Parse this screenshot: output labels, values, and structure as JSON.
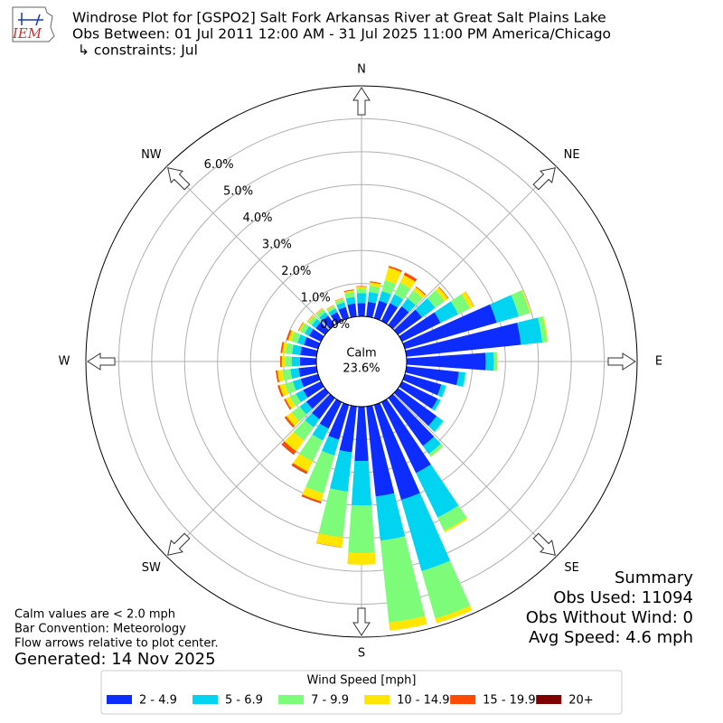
{
  "chart_data": {
    "type": "windrose",
    "logo": "IEM",
    "title": "Windrose Plot for [GSPO2] Salt Fork Arkansas River at Great Salt Plains Lake",
    "subtitle": [
      "Obs Between: 01 Jul 2011 12:00 AM - 31 Jul 2025 11:00 PM America/Chicago",
      "↳ constraints: Jul"
    ],
    "direction_labels": [
      "N",
      "NE",
      "E",
      "SE",
      "S",
      "SW",
      "W",
      "NW"
    ],
    "rlim": [
      0,
      7
    ],
    "rticks": [
      {
        "value": 0,
        "label": "0.0%"
      },
      {
        "value": 1,
        "label": "1.0%"
      },
      {
        "value": 2,
        "label": "2.0%"
      },
      {
        "value": 3,
        "label": "3.0%"
      },
      {
        "value": 4,
        "label": "4.0%"
      },
      {
        "value": 5,
        "label": "5.0%"
      },
      {
        "value": 6,
        "label": "6.0%"
      }
    ],
    "grid": true,
    "calm": {
      "label": "Calm",
      "value": 23.6,
      "value_label": "23.6%"
    },
    "legend_title": "Wind Speed [mph]",
    "series": [
      {
        "name": "2 - 4.9",
        "color": "#0d2cff",
        "values": [
          0.4,
          0.45,
          0.55,
          0.6,
          0.7,
          0.9,
          1.3,
          2.9,
          3.5,
          2.4,
          1.6,
          1.15,
          1.2,
          1.45,
          1.8,
          2.4,
          3.0,
          2.75,
          1.65,
          1.4,
          1.1,
          0.9,
          0.8,
          0.7,
          0.6,
          0.55,
          0.55,
          0.5,
          0.5,
          0.45,
          0.4,
          0.35,
          0.35,
          0.3,
          0.35,
          0.4
        ]
      },
      {
        "name": "5 - 6.9",
        "color": "#00d4f0",
        "values": [
          0.3,
          0.3,
          0.3,
          0.3,
          0.3,
          0.5,
          0.6,
          0.7,
          0.65,
          0.25,
          0.2,
          0.15,
          0.1,
          0.25,
          0.3,
          1.5,
          2.25,
          1.35,
          1.35,
          1.2,
          0.5,
          0.4,
          0.3,
          0.25,
          0.25,
          0.25,
          0.25,
          0.25,
          0.25,
          0.2,
          0.15,
          0.15,
          0.13,
          0.12,
          0.15,
          0.2
        ]
      },
      {
        "name": "7 - 9.9",
        "color": "#7dfc7a",
        "values": [
          0.15,
          0.2,
          0.35,
          0.4,
          0.3,
          0.35,
          0.4,
          0.35,
          0.15,
          0.1,
          0.03,
          0.02,
          0.02,
          0.03,
          0.1,
          0.45,
          1.5,
          2.5,
          1.45,
          1.4,
          1.2,
          0.7,
          0.5,
          0.3,
          0.2,
          0.25,
          0.25,
          0.2,
          0.2,
          0.2,
          0.15,
          0.12,
          0.12,
          0.08,
          0.1,
          0.15
        ]
      },
      {
        "name": "10 - 14.9",
        "color": "#ffe600",
        "values": [
          0.05,
          0.1,
          0.4,
          0.25,
          0.12,
          0.13,
          0.13,
          0.03,
          0.03,
          0.01,
          0,
          0,
          0,
          0,
          0.01,
          0.05,
          0.15,
          0.25,
          0.35,
          0.3,
          0.25,
          0.35,
          0.4,
          0.2,
          0.15,
          0.17,
          0.15,
          0.1,
          0.1,
          0.1,
          0.05,
          0.04,
          0.03,
          0.03,
          0.03,
          0.05
        ]
      },
      {
        "name": "15 - 19.9",
        "color": "#ff4a00",
        "values": [
          0.02,
          0.03,
          0.05,
          0.09,
          0.03,
          0.02,
          0.01,
          0,
          0,
          0,
          0,
          0,
          0,
          0,
          0,
          0,
          0,
          0,
          0,
          0.01,
          0.05,
          0.07,
          0.12,
          0.07,
          0.05,
          0.06,
          0.05,
          0.05,
          0.05,
          0.05,
          0.02,
          0.01,
          0.01,
          0.01,
          0.01,
          0.03
        ]
      },
      {
        "name": "20+",
        "color": "#7f0000",
        "values": [
          0,
          0,
          0,
          0,
          0,
          0,
          0,
          0,
          0,
          0,
          0,
          0,
          0,
          0,
          0,
          0,
          0,
          0,
          0,
          0,
          0.01,
          0.01,
          0.01,
          0,
          0,
          0,
          0,
          0,
          0,
          0,
          0,
          0,
          0,
          0,
          0,
          0
        ]
      }
    ],
    "summary": {
      "title": "Summary",
      "lines": [
        "Obs Used: 11094",
        "Obs Without Wind: 0",
        "Avg Speed: 4.6 mph"
      ]
    },
    "notes": [
      "Calm values are < 2.0 mph",
      "Bar Convention: Meteorology",
      "Flow arrows relative to plot center."
    ],
    "generated": "Generated: 14 Nov 2025"
  }
}
